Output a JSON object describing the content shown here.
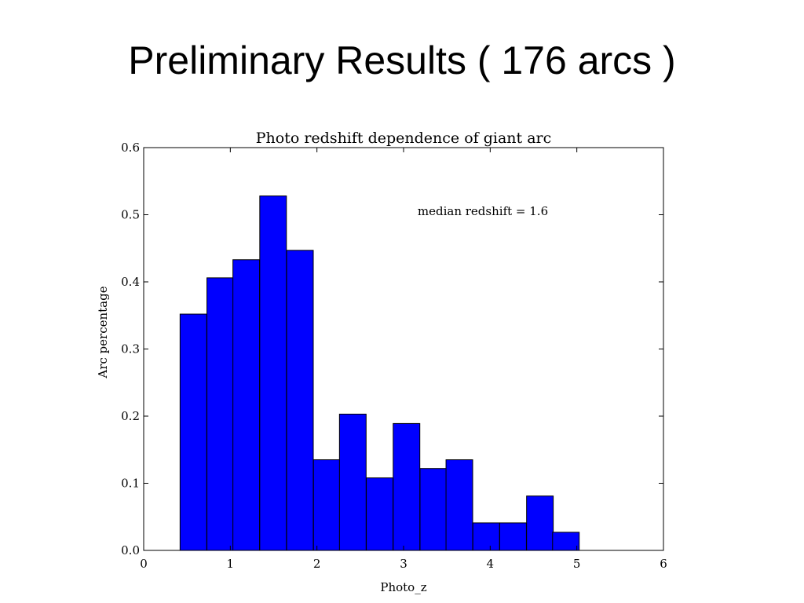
{
  "slide": {
    "title": "Preliminary Results ( 176 arcs )"
  },
  "chart_data": {
    "type": "bar",
    "title": "Photo redshift dependence of giant arc",
    "xlabel": "Photo_z",
    "ylabel": "Arc percentage",
    "annotation": "median redshift = 1.6",
    "xlim": [
      0,
      6
    ],
    "ylim": [
      0,
      0.6
    ],
    "xticks": [
      0,
      1,
      2,
      3,
      4,
      5,
      6
    ],
    "yticks": [
      0.0,
      0.1,
      0.2,
      0.3,
      0.4,
      0.5,
      0.6
    ],
    "ytick_labels": [
      "0.0",
      "0.1",
      "0.2",
      "0.3",
      "0.4",
      "0.5",
      "0.6"
    ],
    "bin_width": 0.3077,
    "bins": [
      {
        "x0": 0.42,
        "value": 0.352
      },
      {
        "x0": 0.73,
        "value": 0.406
      },
      {
        "x0": 1.03,
        "value": 0.433
      },
      {
        "x0": 1.34,
        "value": 0.528
      },
      {
        "x0": 1.65,
        "value": 0.447
      },
      {
        "x0": 1.96,
        "value": 0.135
      },
      {
        "x0": 2.26,
        "value": 0.203
      },
      {
        "x0": 2.57,
        "value": 0.108
      },
      {
        "x0": 2.88,
        "value": 0.189
      },
      {
        "x0": 3.19,
        "value": 0.122
      },
      {
        "x0": 3.49,
        "value": 0.135
      },
      {
        "x0": 3.8,
        "value": 0.041
      },
      {
        "x0": 4.11,
        "value": 0.041
      },
      {
        "x0": 4.42,
        "value": 0.081
      },
      {
        "x0": 4.72,
        "value": 0.027
      }
    ],
    "bar_color": "#0000ff",
    "edge_color": "#000000"
  }
}
